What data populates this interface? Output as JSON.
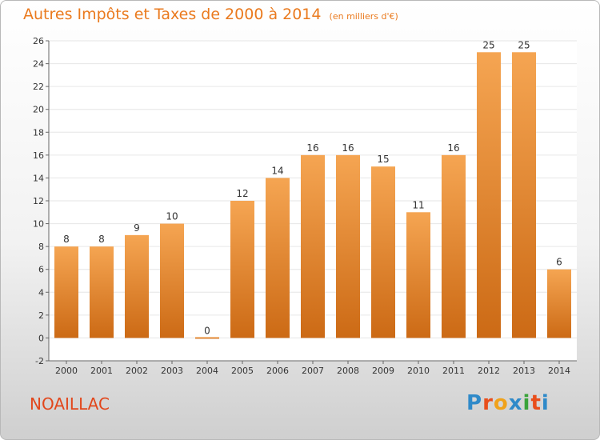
{
  "header": {
    "title": "Autres Impôts et Taxes de 2000 à 2014",
    "subtitle": "(en milliers d'€)"
  },
  "footer": {
    "location": "NOAILLAC",
    "logo": [
      "P",
      "r",
      "o",
      "x",
      "i",
      "t",
      "i"
    ],
    "logo_colors": [
      "#2f8ac9",
      "#e94e1b",
      "#f0a21b",
      "#2f8ac9",
      "#3aa33a",
      "#e94e1b",
      "#2f8ac9"
    ]
  },
  "colors": {
    "bar_top": "#f5a552",
    "bar_bottom": "#cc6a15",
    "label": "#333333",
    "axis": "#666666",
    "grid": "#e6e6e6"
  },
  "chart_data": {
    "type": "bar",
    "categories": [
      "2000",
      "2001",
      "2002",
      "2003",
      "2004",
      "2005",
      "2006",
      "2007",
      "2008",
      "2009",
      "2010",
      "2011",
      "2012",
      "2013",
      "2014"
    ],
    "values": [
      8,
      8,
      9,
      10,
      0,
      12,
      14,
      16,
      16,
      15,
      11,
      16,
      25,
      25,
      6
    ],
    "data_labels": [
      "8",
      "8",
      "9",
      "10",
      "0",
      "12",
      "14",
      "16",
      "16",
      "15",
      "11",
      "16",
      "25",
      "25",
      "6"
    ],
    "y_ticks": [
      -2,
      0,
      2,
      4,
      6,
      8,
      10,
      12,
      14,
      16,
      18,
      20,
      22,
      24,
      26
    ],
    "ylim": [
      -2,
      26
    ],
    "title": "Autres Impôts et Taxes de 2000 à 2014",
    "xlabel": "",
    "ylabel": "",
    "grid": true,
    "legend": "none"
  }
}
